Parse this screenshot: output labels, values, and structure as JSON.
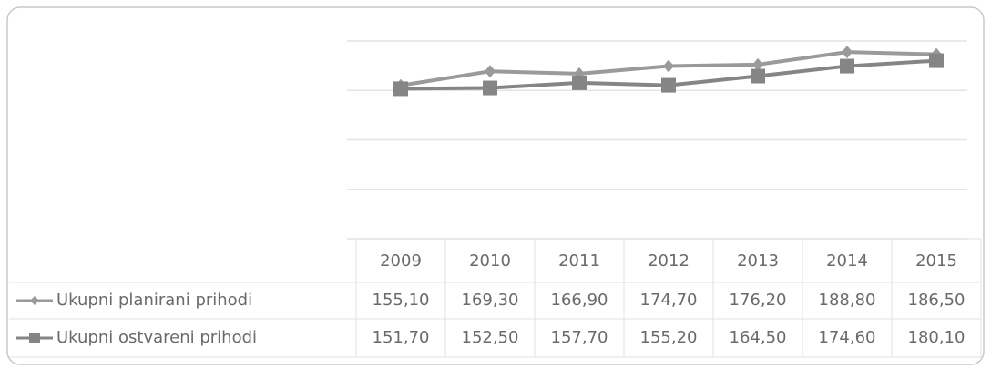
{
  "chart_data": {
    "type": "line",
    "categories": [
      "2009",
      "2010",
      "2011",
      "2012",
      "2013",
      "2014",
      "2015"
    ],
    "series": [
      {
        "name": "Ukupni planirani prihodi",
        "color": "#9a9a9a",
        "marker": "diamond",
        "values": [
          155.1,
          169.3,
          166.9,
          174.7,
          176.2,
          188.8,
          186.5
        ],
        "value_labels": [
          "155,10",
          "169,30",
          "166,90",
          "174,70",
          "176,20",
          "188,80",
          "186,50"
        ]
      },
      {
        "name": "Ukupni ostvareni prihodi",
        "color": "#858585",
        "marker": "square",
        "values": [
          151.7,
          152.5,
          157.7,
          155.2,
          164.5,
          174.6,
          180.1
        ],
        "value_labels": [
          "151,70",
          "152,50",
          "157,70",
          "155,20",
          "164,50",
          "174,60",
          "180,10"
        ]
      }
    ],
    "ylim": [
      0,
      200
    ],
    "yticks": [
      0,
      50,
      100,
      150,
      200
    ],
    "grid": true,
    "data_table": true
  }
}
